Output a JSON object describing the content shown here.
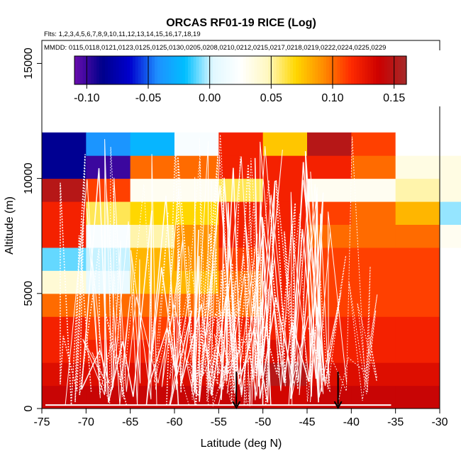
{
  "chart_data": {
    "type": "heatmap",
    "title": "ORCAS RF01-19 RICE (Log)",
    "flights_label": "Flts: 1,2,3,4,5,6,7,8,9,10,11,12,13,14,15,16,17,18,19",
    "dates_label": "MMDD: 0115,0118,0121,0123,0125,0125,0130,0205,0208,0210,0212,0215,0217,0218,0219,0222,0224,0225,0229",
    "xlabel": "Latitude (deg N)",
    "ylabel": "Altitude (m)",
    "xlim": [
      -75,
      -30
    ],
    "ylim": [
      0,
      16000
    ],
    "xticks": [
      -75,
      -70,
      -65,
      -60,
      -55,
      -50,
      -45,
      -40,
      -35,
      -30
    ],
    "xtick_labels": [
      "-75",
      "-70",
      "-65",
      "-60",
      "-55",
      "-50",
      "-45",
      "-40",
      "-35",
      "-30"
    ],
    "yticks": [
      0,
      5000,
      10000,
      15000
    ],
    "ytick_labels": [
      "0",
      "5000",
      "10000",
      "15000"
    ],
    "cells": {
      "lat_bins": [
        -75,
        -70,
        -65,
        -60,
        -55,
        -50,
        -45,
        -40,
        -35,
        -30
      ],
      "alt_bin_width": 1000,
      "alt_bin_count": 12,
      "values_from_surface": [
        [
          0.14,
          0.14,
          0.14,
          0.14,
          0.14,
          0.135,
          0.14,
          0.14,
          0.14,
          null
        ],
        [
          0.13,
          0.13,
          0.13,
          0.13,
          0.13,
          0.15,
          0.13,
          0.13,
          0.13,
          null
        ],
        [
          0.12,
          0.12,
          0.12,
          0.12,
          0.12,
          0.13,
          0.12,
          0.12,
          0.12,
          null
        ],
        [
          0.12,
          0.11,
          0.11,
          0.12,
          0.12,
          0.12,
          0.12,
          0.12,
          0.12,
          null
        ],
        [
          0.1,
          0.1,
          0.1,
          0.1,
          0.1,
          0.12,
          0.11,
          0.11,
          0.11,
          null
        ],
        [
          0.04,
          0.01,
          0.08,
          0.08,
          0.1,
          0.12,
          0.11,
          0.11,
          0.11,
          null
        ],
        [
          -0.01,
          0.0,
          0.08,
          0.09,
          0.11,
          0.12,
          0.11,
          0.11,
          0.11,
          null
        ],
        [
          0.12,
          0.02,
          0.05,
          0.09,
          0.12,
          0.12,
          0.1,
          0.1,
          0.1,
          0.03
        ],
        [
          0.12,
          0.06,
          0.07,
          0.07,
          0.12,
          0.12,
          0.11,
          0.1,
          0.08,
          -0.005
        ],
        [
          0.15,
          0.11,
          0.03,
          0.03,
          0.06,
          0.12,
          0.03,
          0.03,
          0.05,
          0.035
        ],
        [
          -0.085,
          -0.1,
          0.1,
          0.1,
          0.12,
          0.12,
          0.12,
          0.1,
          0.035,
          0.035
        ],
        [
          -0.085,
          -0.04,
          -0.025,
          0.02,
          0.12,
          0.075,
          0.15,
          0.11,
          0.025,
          0.025
        ]
      ]
    },
    "colorbar": {
      "vmin": -0.11,
      "vmax": 0.16,
      "ticks": [
        -0.1,
        -0.05,
        0.0,
        0.05,
        0.1,
        0.15
      ],
      "tick_labels": [
        "-0.10",
        "-0.05",
        "0.00",
        "0.05",
        "0.10",
        "0.15"
      ],
      "colors": [
        "#6a0dad",
        "#00008b",
        "#0000cd",
        "#1e90ff",
        "#00bfff",
        "#e0f8ff",
        "#ffffff",
        "#fff8c0",
        "#ffd700",
        "#ff8c00",
        "#ff2a00",
        "#cc0000",
        "#a52a2a"
      ]
    },
    "flight_tracks_color": "#ffffff",
    "markers": [
      {
        "label": "arrow",
        "lat": -53
      },
      {
        "label": "arrow",
        "lat": -41.5
      }
    ]
  }
}
